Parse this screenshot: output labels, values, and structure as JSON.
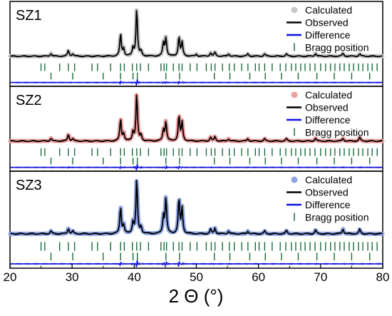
{
  "chart_data": {
    "type": "line",
    "xlabel": "2 Θ (°)",
    "xlim": [
      20,
      80
    ],
    "x_ticks": [
      "20",
      "30",
      "40",
      "50",
      "60",
      "70",
      "80"
    ],
    "legend_placement": "top-right",
    "legend_labels": {
      "calculated": "Calculated",
      "observed": "Observed",
      "difference": "Difference",
      "bragg": "Bragg position"
    },
    "colors": {
      "observed": "#000000",
      "difference": "#1010e0",
      "bragg": "#1a6b3c",
      "panel_border": "#000000"
    },
    "panels": [
      {
        "label": "SZ1",
        "calculated_color": "#c8c8c8",
        "peaks": [
          [
            26.6,
            0.06
          ],
          [
            29.4,
            0.12
          ],
          [
            30.1,
            0.05
          ],
          [
            37.8,
            0.45
          ],
          [
            38.3,
            0.15
          ],
          [
            39.8,
            0.16
          ],
          [
            40.4,
            0.98
          ],
          [
            41.1,
            0.1
          ],
          [
            44.7,
            0.27
          ],
          [
            45.1,
            0.38
          ],
          [
            47.2,
            0.4
          ],
          [
            47.7,
            0.28
          ],
          [
            50.0,
            0.04
          ],
          [
            52.3,
            0.07
          ],
          [
            53.0,
            0.08
          ],
          [
            55.2,
            0.05
          ],
          [
            58.3,
            0.05
          ],
          [
            61.0,
            0.05
          ],
          [
            64.5,
            0.05
          ],
          [
            69.2,
            0.06
          ],
          [
            73.6,
            0.06
          ],
          [
            76.3,
            0.05
          ]
        ],
        "bragg_row1": [
          25.0,
          25.6,
          28.0,
          29.4,
          30.4,
          33.2,
          34.1,
          36.2,
          37.8,
          38.4,
          39.7,
          40.4,
          41.0,
          42.3,
          44.3,
          44.8,
          45.2,
          46.3,
          47.2,
          47.7,
          49.0,
          50.1,
          51.6,
          52.4,
          53.0,
          54.2,
          55.3,
          56.1,
          57.3,
          58.3,
          59.5,
          60.1,
          61.0,
          62.2,
          63.5,
          64.4,
          65.3,
          66.0,
          66.8,
          67.5,
          68.3,
          69.1,
          70.0,
          70.8,
          71.6,
          72.3,
          73.1,
          73.8,
          74.6,
          75.3,
          76.1,
          76.8,
          77.6,
          78.3,
          79.1
        ],
        "bragg_row2": [
          26.6,
          30.1,
          35.0,
          37.8,
          39.8,
          40.5,
          45.1,
          47.3,
          52.9,
          55.4,
          58.6,
          61.1,
          63.7,
          66.4,
          69.4,
          72.2,
          75.0,
          77.9
        ]
      },
      {
        "label": "SZ2",
        "calculated_color": "#f0a0a0",
        "peaks": [
          [
            26.6,
            0.06
          ],
          [
            29.4,
            0.14
          ],
          [
            30.1,
            0.05
          ],
          [
            37.8,
            0.45
          ],
          [
            38.3,
            0.15
          ],
          [
            39.8,
            0.18
          ],
          [
            40.4,
            0.98
          ],
          [
            41.1,
            0.12
          ],
          [
            44.7,
            0.22
          ],
          [
            45.1,
            0.4
          ],
          [
            47.2,
            0.52
          ],
          [
            47.7,
            0.38
          ],
          [
            52.3,
            0.08
          ],
          [
            53.0,
            0.09
          ],
          [
            55.2,
            0.05
          ],
          [
            58.3,
            0.05
          ],
          [
            61.0,
            0.05
          ],
          [
            64.5,
            0.05
          ],
          [
            69.2,
            0.06
          ],
          [
            73.6,
            0.06
          ],
          [
            76.3,
            0.08
          ]
        ],
        "bragg_row1": [
          25.0,
          25.6,
          28.0,
          29.4,
          30.4,
          33.2,
          34.1,
          36.2,
          37.8,
          38.4,
          39.7,
          40.4,
          41.0,
          42.3,
          44.3,
          44.8,
          45.2,
          46.3,
          47.2,
          47.7,
          49.0,
          50.1,
          51.6,
          52.4,
          53.0,
          54.2,
          55.3,
          56.1,
          57.3,
          58.3,
          59.5,
          60.1,
          61.0,
          62.2,
          63.5,
          64.4,
          65.3,
          66.0,
          66.8,
          67.5,
          68.3,
          69.1,
          70.0,
          70.8,
          71.6,
          72.3,
          73.1,
          73.8,
          74.6,
          75.3,
          76.1,
          76.8,
          77.6,
          78.3,
          79.1
        ],
        "bragg_row2": [
          26.6,
          30.1,
          35.0,
          37.8,
          39.8,
          40.5,
          45.1,
          47.3,
          52.9,
          55.4,
          58.6,
          61.1,
          63.7,
          66.4,
          69.4,
          72.2,
          75.0,
          77.9
        ]
      },
      {
        "label": "SZ3",
        "calculated_color": "#8fa6e6",
        "peaks": [
          [
            26.6,
            0.05
          ],
          [
            29.4,
            0.1
          ],
          [
            30.1,
            0.05
          ],
          [
            37.8,
            0.48
          ],
          [
            38.3,
            0.15
          ],
          [
            39.8,
            0.2
          ],
          [
            40.4,
            0.98
          ],
          [
            41.1,
            0.12
          ],
          [
            44.7,
            0.3
          ],
          [
            45.1,
            0.64
          ],
          [
            47.2,
            0.62
          ],
          [
            47.7,
            0.45
          ],
          [
            52.3,
            0.08
          ],
          [
            53.0,
            0.1
          ],
          [
            55.2,
            0.05
          ],
          [
            58.3,
            0.05
          ],
          [
            61.0,
            0.05
          ],
          [
            64.5,
            0.06
          ],
          [
            69.2,
            0.07
          ],
          [
            73.6,
            0.09
          ],
          [
            76.3,
            0.08
          ]
        ],
        "bragg_row1": [
          25.0,
          25.6,
          28.0,
          29.4,
          30.4,
          33.2,
          34.1,
          36.2,
          37.8,
          38.4,
          39.7,
          40.4,
          41.0,
          42.3,
          44.3,
          44.8,
          45.2,
          46.3,
          47.2,
          47.7,
          49.0,
          50.1,
          51.6,
          52.4,
          53.0,
          54.2,
          55.3,
          56.1,
          57.3,
          58.3,
          59.5,
          60.1,
          61.0,
          62.2,
          63.5,
          64.4,
          65.3,
          66.0,
          66.8,
          67.5,
          68.3,
          69.1,
          70.0,
          70.8,
          71.6,
          72.3,
          73.1,
          73.8,
          74.6,
          75.3,
          76.1,
          76.8,
          77.6,
          78.3,
          79.1
        ],
        "bragg_row2": [
          26.6,
          30.1,
          35.0,
          37.8,
          39.8,
          40.5,
          45.1,
          47.3,
          52.9,
          55.4,
          58.6,
          61.1,
          63.7,
          66.4,
          69.4,
          72.2,
          75.0,
          77.9
        ]
      }
    ]
  }
}
